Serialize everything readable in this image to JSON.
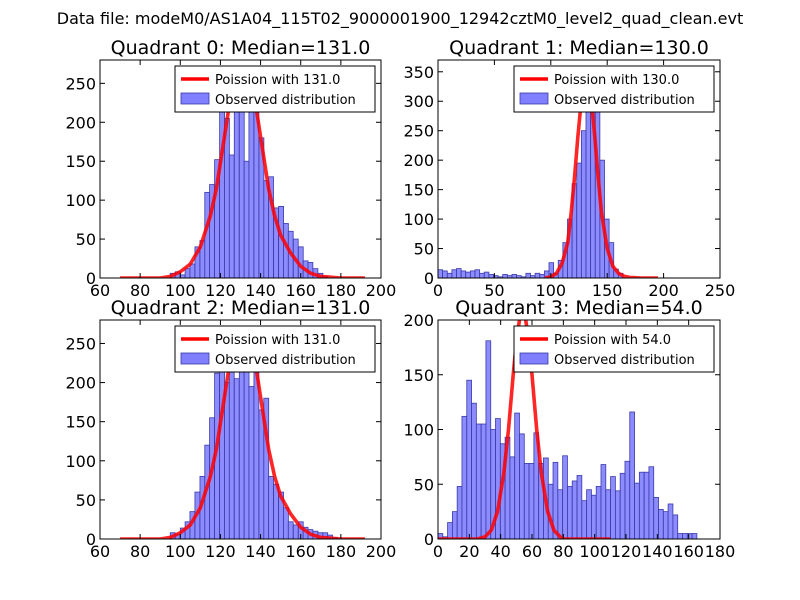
{
  "suptitle": "Data file: modeM0/AS1A04_115T02_9000001900_12942cztM0_level2_quad_clean.evt",
  "colors": {
    "bar_fill": "#7f7fff",
    "bar_edge": "#3a3aa8",
    "curve": "#ff0000",
    "axis": "#000000"
  },
  "chart_data": [
    {
      "type": "bar",
      "title": "Quadrant 0: Median=131.0",
      "xlim": [
        60,
        200
      ],
      "ylim": [
        0,
        280
      ],
      "xticks": [
        60,
        80,
        100,
        120,
        140,
        160,
        180,
        200
      ],
      "yticks": [
        0,
        50,
        100,
        150,
        200,
        250
      ],
      "bin_width": 2.45,
      "bins_start": [
        95.0,
        97.5,
        100.0,
        102.4,
        104.8,
        107.3,
        109.8,
        112.2,
        114.6,
        117.1,
        119.6,
        122.0,
        124.4,
        126.9,
        129.4,
        131.8,
        134.2,
        136.7,
        139.2,
        141.6,
        144.0,
        146.5,
        149.0,
        151.4,
        153.8,
        156.3,
        158.8,
        161.2,
        163.6,
        166.1,
        168.6,
        171.0
      ],
      "counts": [
        6,
        8,
        4,
        12,
        18,
        40,
        48,
        110,
        120,
        152,
        218,
        205,
        158,
        218,
        225,
        150,
        245,
        228,
        180,
        125,
        130,
        90,
        92,
        70,
        60,
        50,
        40,
        22,
        20,
        12,
        6,
        2
      ],
      "curve_label": "Poission with 131.0",
      "hist_label": "Observed distribution",
      "curve": {
        "x": [
          70,
          90,
          95,
          100,
          105,
          110,
          115,
          118,
          121,
          124,
          127,
          129,
          131,
          133,
          135,
          138,
          141,
          144,
          147,
          150,
          155,
          160,
          165,
          170,
          175,
          180,
          192
        ],
        "y": [
          0,
          0,
          2,
          8,
          18,
          40,
          80,
          115,
          165,
          215,
          255,
          265,
          268,
          265,
          255,
          215,
          165,
          115,
          80,
          55,
          32,
          15,
          6,
          2,
          1,
          0,
          0
        ]
      }
    },
    {
      "type": "bar",
      "title": "Quadrant 1: Median=130.0",
      "xlim": [
        0,
        250
      ],
      "ylim": [
        0,
        370
      ],
      "xticks": [
        0,
        50,
        100,
        150,
        200,
        250
      ],
      "yticks": [
        0,
        50,
        100,
        150,
        200,
        250,
        300,
        350
      ],
      "bin_width": 4.1,
      "bins_start": [
        0,
        4.1,
        8.2,
        12.3,
        16.4,
        20.5,
        24.6,
        28.7,
        32.8,
        36.9,
        41.0,
        45.1,
        49.2,
        53.3,
        57.4,
        61.5,
        65.6,
        69.7,
        73.8,
        77.9,
        82.0,
        86.1,
        90.2,
        94.3,
        98.4,
        102.5,
        106.6,
        110.7,
        114.8,
        118.9,
        123.0,
        127.1,
        131.2,
        135.3,
        139.4,
        143.5,
        147.6,
        151.7,
        155.8,
        159.9
      ],
      "counts": [
        14,
        12,
        8,
        14,
        16,
        12,
        10,
        12,
        14,
        8,
        10,
        6,
        4,
        2,
        6,
        4,
        6,
        4,
        2,
        8,
        4,
        8,
        6,
        12,
        26,
        8,
        30,
        60,
        100,
        160,
        195,
        250,
        310,
        330,
        340,
        200,
        100,
        60,
        15,
        8
      ],
      "curve_label": "Poission with 130.0",
      "hist_label": "Observed distribution",
      "curve": {
        "x": [
          95,
          100,
          105,
          110,
          115,
          118,
          121,
          124,
          127,
          130,
          133,
          136,
          139,
          142,
          145,
          150,
          155,
          160,
          165,
          170,
          180,
          195
        ],
        "y": [
          0,
          2,
          8,
          25,
          60,
          110,
          170,
          240,
          300,
          345,
          350,
          300,
          240,
          170,
          110,
          50,
          20,
          8,
          3,
          1,
          0,
          0
        ]
      }
    },
    {
      "type": "bar",
      "title": "Quadrant 2: Median=131.0",
      "xlim": [
        60,
        200
      ],
      "ylim": [
        0,
        280
      ],
      "xticks": [
        60,
        80,
        100,
        120,
        140,
        160,
        180,
        200
      ],
      "yticks": [
        0,
        50,
        100,
        150,
        200,
        250
      ],
      "bin_width": 2.45,
      "bins_start": [
        95.0,
        97.5,
        100.0,
        102.4,
        104.8,
        107.3,
        109.8,
        112.2,
        114.6,
        117.1,
        119.6,
        122.0,
        124.4,
        126.9,
        129.4,
        131.8,
        134.2,
        136.7,
        139.2,
        141.6,
        144.0,
        146.5,
        149.0,
        151.4,
        153.8,
        156.3,
        158.8,
        161.2,
        163.6,
        166.1,
        168.6,
        171.0,
        173.4,
        175.9
      ],
      "counts": [
        8,
        6,
        14,
        22,
        35,
        60,
        80,
        120,
        155,
        212,
        220,
        200,
        243,
        205,
        250,
        248,
        195,
        233,
        165,
        180,
        80,
        70,
        60,
        40,
        22,
        18,
        22,
        15,
        12,
        10,
        8,
        8,
        5,
        2
      ],
      "curve_label": "Poission with 131.0",
      "hist_label": "Observed distribution",
      "curve": {
        "x": [
          70,
          90,
          95,
          100,
          105,
          110,
          115,
          118,
          121,
          124,
          127,
          129,
          131,
          133,
          135,
          138,
          141,
          144,
          147,
          150,
          155,
          160,
          165,
          170,
          175,
          180,
          192
        ],
        "y": [
          0,
          0,
          2,
          8,
          18,
          40,
          80,
          115,
          165,
          215,
          255,
          265,
          268,
          265,
          255,
          215,
          165,
          115,
          80,
          55,
          32,
          15,
          6,
          2,
          1,
          0,
          0
        ]
      }
    },
    {
      "type": "bar",
      "title": "Quadrant 3: Median=54.0",
      "xlim": [
        0,
        180
      ],
      "ylim": [
        0,
        200
      ],
      "xticks": [
        0,
        20,
        40,
        60,
        80,
        100,
        120,
        140,
        160,
        180
      ],
      "yticks": [
        0,
        50,
        100,
        150,
        200
      ],
      "bin_width": 3.06,
      "bins_start": [
        0,
        3.06,
        6.12,
        9.18,
        12.24,
        15.3,
        18.36,
        21.42,
        24.48,
        27.54,
        30.6,
        33.66,
        36.72,
        39.78,
        42.84,
        45.9,
        48.96,
        52.02,
        55.08,
        58.14,
        61.2,
        64.26,
        67.32,
        70.38,
        73.44,
        76.5,
        79.56,
        82.62,
        85.68,
        88.74,
        91.8,
        94.86,
        97.92,
        100.98,
        104.04,
        107.1,
        110.16,
        113.22,
        116.28,
        119.34,
        122.4,
        125.46,
        128.52,
        131.58,
        134.64,
        137.7,
        140.76,
        143.82,
        146.88,
        149.94,
        153.0,
        156.06,
        159.12,
        162.18
      ],
      "counts": [
        5,
        2,
        15,
        25,
        48,
        112,
        145,
        124,
        105,
        105,
        181,
        100,
        110,
        87,
        93,
        75,
        115,
        96,
        69,
        69,
        97,
        69,
        74,
        50,
        70,
        45,
        76,
        48,
        53,
        58,
        35,
        45,
        40,
        48,
        68,
        45,
        57,
        44,
        60,
        71,
        116,
        51,
        61,
        61,
        66,
        38,
        27,
        25,
        32,
        22,
        5,
        5,
        5,
        5
      ],
      "curve_label": "Poission with 54.0",
      "hist_label": "Observed distribution",
      "curve": {
        "x": [
          0,
          25,
          30,
          34,
          38,
          42,
          45,
          48,
          50,
          52,
          54,
          56,
          58,
          60,
          63,
          66,
          70,
          74,
          78,
          80,
          90,
          110
        ],
        "y": [
          0,
          0,
          2,
          8,
          25,
          60,
          100,
          150,
          180,
          200,
          205,
          200,
          180,
          150,
          100,
          60,
          25,
          8,
          2,
          0,
          0,
          0
        ]
      }
    }
  ]
}
